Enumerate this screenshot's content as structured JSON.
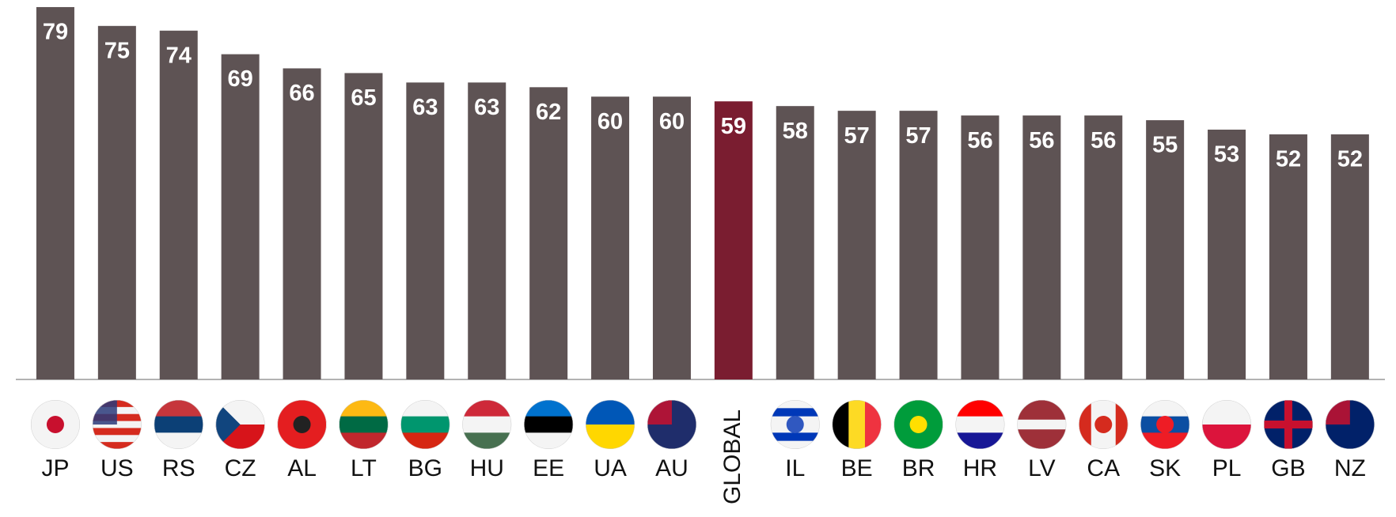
{
  "chart_data": {
    "type": "bar",
    "categories": [
      "JP",
      "US",
      "RS",
      "CZ",
      "AL",
      "LT",
      "BG",
      "HU",
      "EE",
      "UA",
      "AU",
      "GLOBAL",
      "IL",
      "BE",
      "BR",
      "HR",
      "LV",
      "CA",
      "SK",
      "PL",
      "GB",
      "NZ"
    ],
    "values": [
      79,
      75,
      74,
      69,
      66,
      65,
      63,
      63,
      62,
      60,
      60,
      59,
      58,
      57,
      57,
      56,
      56,
      56,
      55,
      53,
      52,
      52
    ],
    "colors": [
      "#5e5354",
      "#5e5354",
      "#5e5354",
      "#5e5354",
      "#5e5354",
      "#5e5354",
      "#5e5354",
      "#5e5354",
      "#5e5354",
      "#5e5354",
      "#5e5354",
      "#7a1d30",
      "#5e5354",
      "#5e5354",
      "#5e5354",
      "#5e5354",
      "#5e5354",
      "#5e5354",
      "#5e5354",
      "#5e5354",
      "#5e5354",
      "#5e5354"
    ],
    "ylim": [
      0,
      80
    ]
  }
}
